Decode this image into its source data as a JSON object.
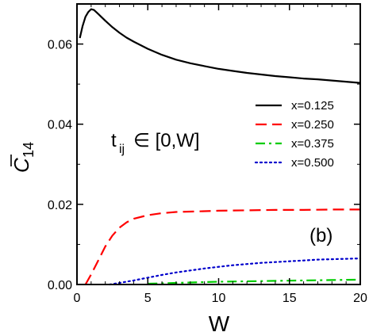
{
  "chart_data": {
    "type": "line",
    "xlabel": "W",
    "ylabel": "C",
    "ylabel_sub": "14",
    "xlim": [
      0,
      20
    ],
    "ylim": [
      0,
      0.07
    ],
    "xticks": [
      0,
      5,
      10,
      15,
      20
    ],
    "xtick_labels": [
      "0",
      "5",
      "10",
      "15",
      "20"
    ],
    "yticks": [
      0,
      0.02,
      0.04,
      0.06
    ],
    "ytick_labels": [
      "0.00",
      "0.02",
      "0.04",
      "0.06"
    ],
    "grid": false,
    "legend_position": "right",
    "annotation_range": {
      "t": "t",
      "sub": "ij",
      "rest": "∈ [0,W]"
    },
    "panel_label": "(b)",
    "series": [
      {
        "name": "x=0.125",
        "color": "#000000",
        "dash": "solid",
        "x": [
          0.2,
          0.4,
          0.6,
          0.8,
          1.0,
          1.2,
          1.5,
          2.0,
          2.5,
          3.0,
          3.5,
          4.0,
          5.0,
          6.0,
          7.0,
          8.0,
          9.0,
          10.0,
          11.0,
          12.0,
          13.0,
          14.0,
          15.0,
          16.0,
          17.0,
          18.0,
          19.0,
          20.0
        ],
        "y": [
          0.0615,
          0.0645,
          0.0668,
          0.068,
          0.0687,
          0.0685,
          0.0675,
          0.0658,
          0.0642,
          0.0628,
          0.0616,
          0.0606,
          0.0588,
          0.0573,
          0.0561,
          0.0552,
          0.0545,
          0.0538,
          0.0533,
          0.0528,
          0.0524,
          0.052,
          0.0517,
          0.0514,
          0.0512,
          0.0509,
          0.0506,
          0.0503
        ]
      },
      {
        "name": "x=0.250",
        "color": "#ff0000",
        "dash": "dashed",
        "x": [
          0.6,
          1.0,
          1.5,
          2.0,
          2.5,
          3.0,
          3.5,
          4.0,
          5.0,
          6.0,
          7.0,
          8.0,
          9.0,
          10.0,
          12.0,
          14.0,
          16.0,
          18.0,
          20.0
        ],
        "y": [
          0.0,
          0.0025,
          0.006,
          0.0095,
          0.0122,
          0.0142,
          0.0155,
          0.0164,
          0.0173,
          0.0178,
          0.0181,
          0.0182,
          0.0183,
          0.0184,
          0.0185,
          0.0186,
          0.0186,
          0.0187,
          0.0187
        ]
      },
      {
        "name": "x=0.375",
        "color": "#00cc00",
        "dash": "dashdot",
        "x": [
          5.0,
          6.0,
          7.0,
          8.0,
          9.0,
          10.0,
          12.0,
          14.0,
          16.0,
          18.0,
          20.0
        ],
        "y": [
          0.0002,
          0.0003,
          0.0004,
          0.0005,
          0.0006,
          0.0007,
          0.0008,
          0.0009,
          0.001,
          0.0011,
          0.0012
        ]
      },
      {
        "name": "x=0.500",
        "color": "#0000cc",
        "dash": "dotted",
        "x": [
          2.3,
          3.0,
          4.0,
          5.0,
          6.0,
          7.0,
          8.0,
          9.0,
          10.0,
          11.0,
          12.0,
          13.0,
          14.0,
          15.0,
          16.0,
          17.0,
          18.0,
          19.0,
          20.0
        ],
        "y": [
          0.0,
          0.0004,
          0.001,
          0.0017,
          0.0024,
          0.003,
          0.0035,
          0.004,
          0.0044,
          0.0048,
          0.0051,
          0.0054,
          0.0056,
          0.0058,
          0.006,
          0.0062,
          0.0063,
          0.0064,
          0.0065
        ]
      }
    ]
  }
}
